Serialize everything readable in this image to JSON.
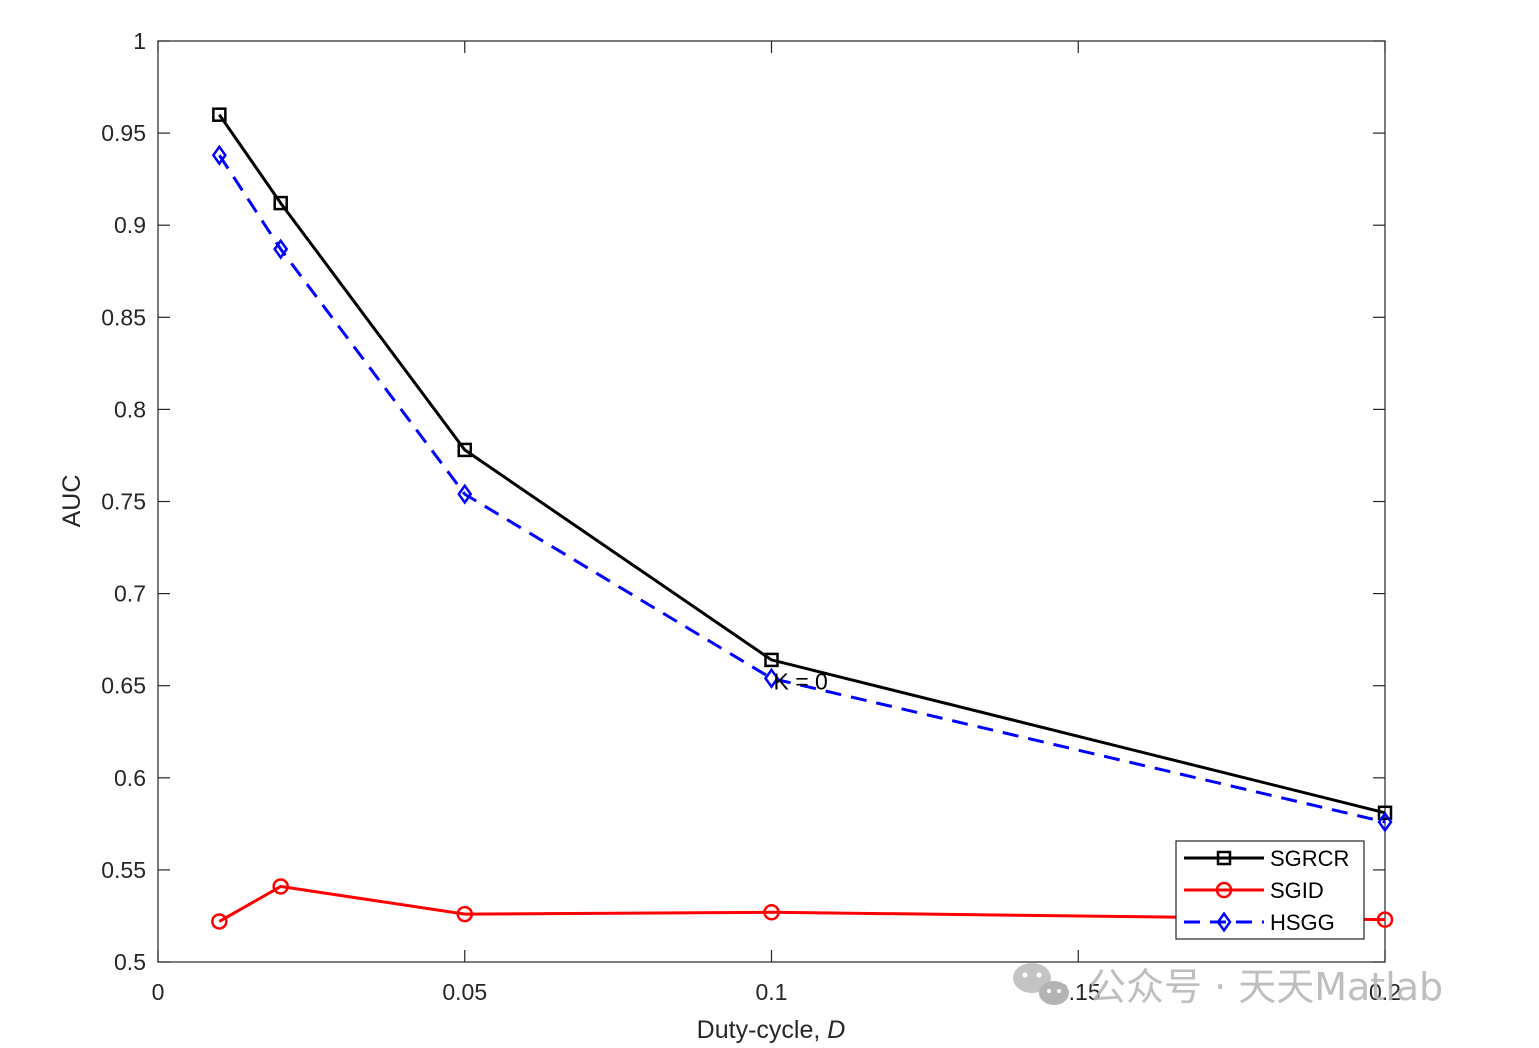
{
  "chart_data": {
    "type": "line",
    "xlabel": "Duty-cycle, ",
    "xlabel_italic": "D",
    "ylabel": "AUC",
    "xlim": [
      0,
      0.2
    ],
    "ylim": [
      0.5,
      1
    ],
    "xticks": [
      0,
      0.05,
      0.1,
      0.15,
      0.2
    ],
    "xtick_labels": [
      "0",
      "0.05",
      "0.1",
      "0.15",
      "0.2"
    ],
    "yticks": [
      0.5,
      0.55,
      0.6,
      0.65,
      0.7,
      0.75,
      0.8,
      0.85,
      0.9,
      0.95,
      1
    ],
    "ytick_labels": [
      "0.5",
      "0.55",
      "0.6",
      "0.65",
      "0.7",
      "0.75",
      "0.8",
      "0.85",
      "0.9",
      "0.95",
      "1"
    ],
    "grid": false,
    "legend_position": "bottom-right",
    "x": [
      0.01,
      0.02,
      0.05,
      0.1,
      0.2
    ],
    "series": [
      {
        "name": "SGRCR",
        "values": [
          0.96,
          0.912,
          0.778,
          0.664,
          0.581
        ],
        "color": "#000000",
        "marker": "square",
        "dash": "solid"
      },
      {
        "name": "SGID",
        "values": [
          0.522,
          0.541,
          0.526,
          0.527,
          0.523
        ],
        "color": "#ff0000",
        "marker": "circle",
        "dash": "solid"
      },
      {
        "name": "HSGG",
        "values": [
          0.938,
          0.887,
          0.754,
          0.654,
          0.576
        ],
        "color": "#0000ff",
        "marker": "diamond",
        "dash": "dashed"
      }
    ],
    "annotations": [
      {
        "text": "K = 0",
        "x": 0.1,
        "y": 0.65
      }
    ]
  },
  "watermark": {
    "text": "公众号 · 天天Matlab",
    "icon": "wechat-icon"
  }
}
